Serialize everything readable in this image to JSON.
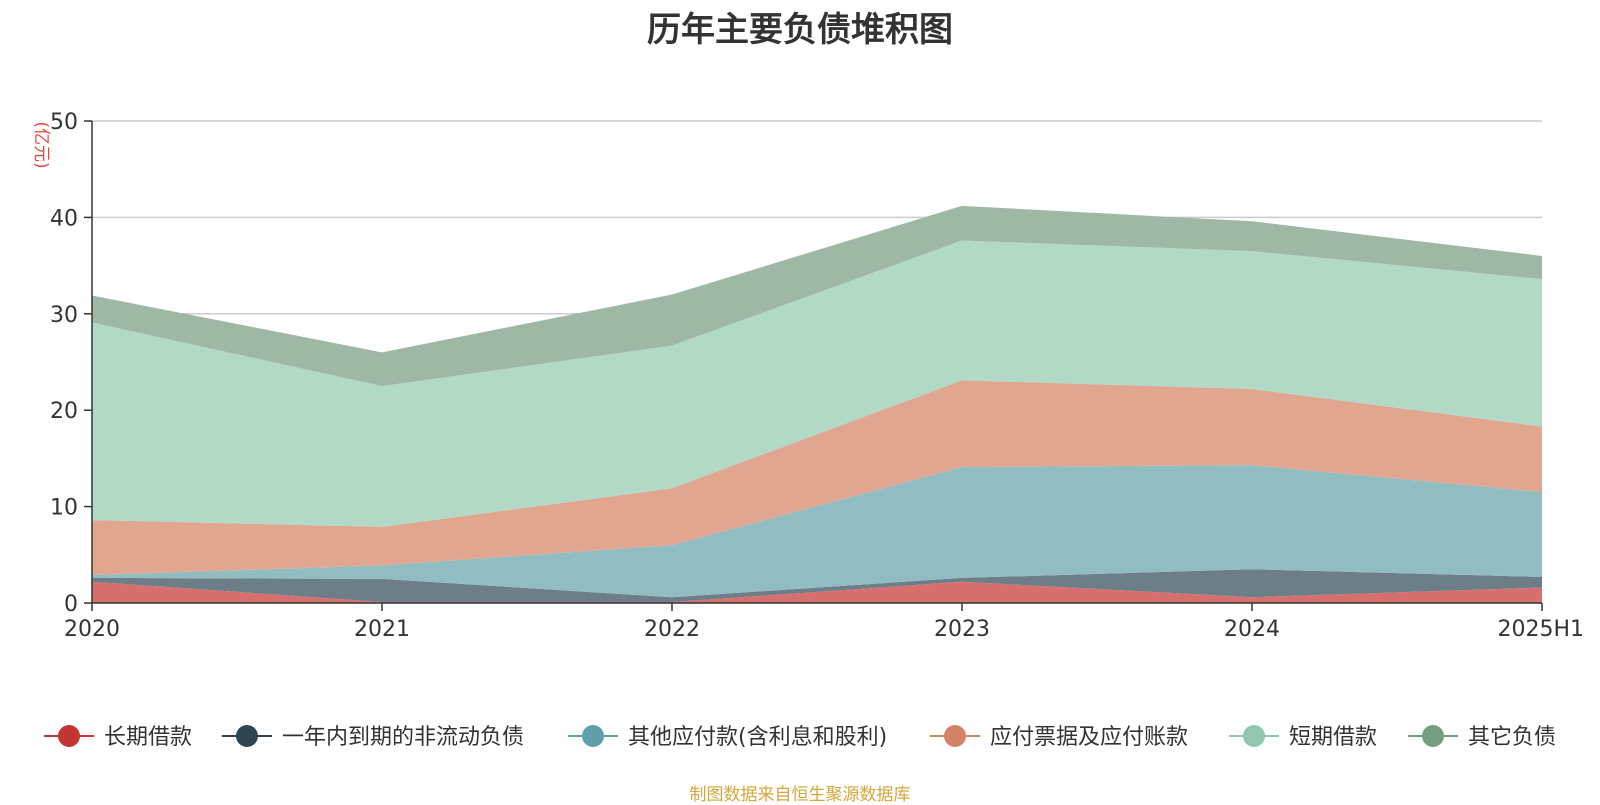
{
  "chart_data": {
    "type": "area",
    "stacked": true,
    "title": "历年主要负债堆积图",
    "unit_label": "(亿元)",
    "source_note": "制图数据来自恒生聚源数据库",
    "categories": [
      "2020",
      "2021",
      "2022",
      "2023",
      "2024",
      "2025H1"
    ],
    "ylim": [
      0,
      50
    ],
    "yticks": [
      "0",
      "10",
      "20",
      "30",
      "40",
      "50"
    ],
    "grid": true,
    "legend_position": "bottom",
    "series": [
      {
        "name": "长期借款",
        "color": "#c23531",
        "fill": "#d66f6d",
        "values": [
          2.2,
          0.1,
          0.1,
          2.2,
          0.6,
          1.6
        ]
      },
      {
        "name": "一年内到期的非流动负债",
        "color": "#2f4554",
        "fill": "#6e7e88",
        "values": [
          0.4,
          2.4,
          0.5,
          0.4,
          2.9,
          1.1
        ]
      },
      {
        "name": "其他应付款(含利息和股利)",
        "color": "#61a0a8",
        "fill": "#90bcc2",
        "values": [
          0.3,
          1.4,
          5.4,
          11.5,
          10.8,
          8.8
        ]
      },
      {
        "name": "应付票据及应付账款",
        "color": "#d48265",
        "fill": "#e0a690",
        "values": [
          5.7,
          4.0,
          5.9,
          9.0,
          7.9,
          6.8
        ]
      },
      {
        "name": "短期借款",
        "color": "#91c7ae",
        "fill": "#b2d8c6",
        "values": [
          20.5,
          14.6,
          14.8,
          14.5,
          14.3,
          15.3
        ]
      },
      {
        "name": "其它负债",
        "color": "#749f83",
        "fill": "#9fb8a5",
        "values": [
          2.8,
          3.5,
          5.3,
          3.6,
          3.1,
          2.4
        ]
      }
    ]
  },
  "colors": {
    "unit_label": "#e8473e",
    "source_note": "#d6a63a",
    "axis": "#333333",
    "grid": "#cccccc"
  }
}
